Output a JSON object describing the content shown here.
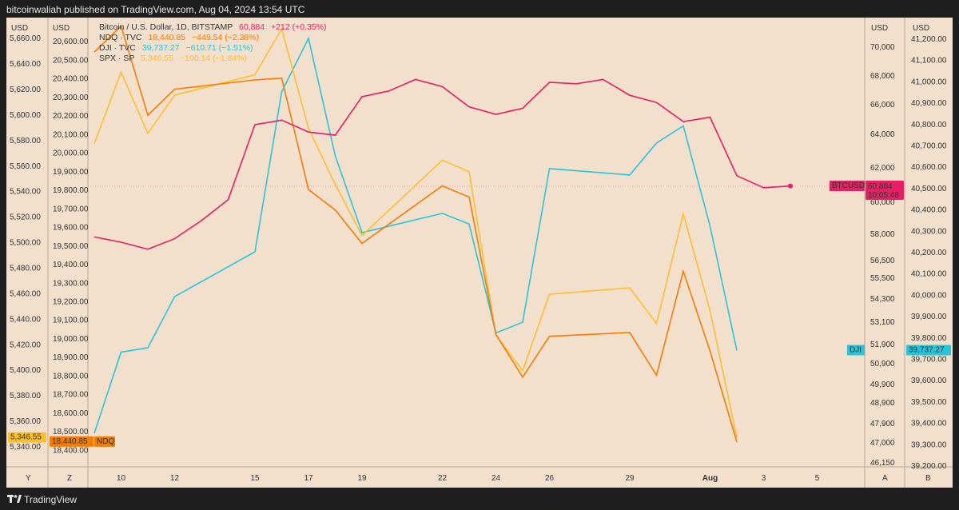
{
  "header": {
    "published": "bitcoinwaliah published on TradingView.com, Aug 04, 2024 13:54 UTC"
  },
  "footer": {
    "brand": "TradingView",
    "logo_icon": "tradingview-logo-icon"
  },
  "colors": {
    "btc": "#e91e63",
    "ndq": "#f57c00",
    "dji": "#26c6da",
    "spx": "#fbc02d",
    "bg": "#f2dfcc"
  },
  "axes": {
    "currency_label": "USD",
    "bottom_labels": {
      "spx": "Y",
      "ndq": "Z",
      "btc": "A",
      "dji": "B"
    },
    "x_ticks": [
      "10",
      "12",
      "15",
      "17",
      "19",
      "22",
      "24",
      "26",
      "29",
      "Aug",
      "3",
      "5"
    ],
    "spx_ticks": [
      "5,660.00",
      "5,640.00",
      "5,620.00",
      "5,600.00",
      "5,580.00",
      "5,560.00",
      "5,540.00",
      "5,520.00",
      "5,500.00",
      "5,480.00",
      "5,460.00",
      "5,440.00",
      "5,420.00",
      "5,400.00",
      "5,380.00",
      "5,360.00",
      "5,340.00"
    ],
    "ndq_ticks": [
      "20,600.00",
      "20,500.00",
      "20,400.00",
      "20,300.00",
      "20,200.00",
      "20,100.00",
      "20,000.00",
      "19,900.00",
      "19,800.00",
      "19,700.00",
      "19,600.00",
      "19,500.00",
      "19,400.00",
      "19,300.00",
      "19,200.00",
      "19,100.00",
      "19,000.00",
      "18,900.00",
      "18,800.00",
      "18,700.00",
      "18,600.00",
      "18,500.00",
      "18,400.00"
    ],
    "btc_ticks": [
      "70,000",
      "68,000",
      "66,000",
      "64,000",
      "62,000",
      "60,000",
      "58,000",
      "56,500",
      "55,500",
      "54,300",
      "53,100",
      "51,900",
      "50,900",
      "49,900",
      "48,900",
      "47,900",
      "47,000",
      "46,150"
    ],
    "dji_ticks": [
      "41,200.00",
      "41,100.00",
      "41,000.00",
      "40,900.00",
      "40,800.00",
      "40,700.00",
      "40,600.00",
      "40,500.00",
      "40,400.00",
      "40,300.00",
      "40,200.00",
      "40,100.00",
      "40,000.00",
      "39,900.00",
      "39,800.00",
      "39,700.00",
      "39,600.00",
      "39,500.00",
      "39,400.00",
      "39,300.00",
      "39,200.00"
    ]
  },
  "legend": {
    "btc": {
      "name": "Bitcoin / U.S. Dollar, 1D, BITSTAMP",
      "price": "60,884",
      "change": "+212 (+0.35%)"
    },
    "ndq": {
      "name": "NDQ · TVC",
      "price": "18,440.85",
      "change": "−449.54 (−2.38%)"
    },
    "dji": {
      "name": "DJI · TVC",
      "price": "39,737.27",
      "change": "−610.71 (−1.51%)"
    },
    "spx": {
      "name": "SPX · SP",
      "price": "5,346.55",
      "change": "−100.14 (−1.84%)"
    }
  },
  "badges": {
    "spx_last": "5,346.55",
    "ndq_last": "18,440.85",
    "ndq_label": "NDQ",
    "btc_label": "BTCUSD",
    "btc_price": "60,884",
    "btc_countdown": "10:05:48",
    "dji_label": "DJI",
    "dji_price": "39,737.27"
  },
  "chart_data": {
    "type": "line",
    "x_axis_note": "daily, July 9 – Aug 4, 2024",
    "series": [
      {
        "name": "BTCUSD",
        "axis": "btc",
        "x": [
          "2024-07-09",
          "2024-07-10",
          "2024-07-11",
          "2024-07-12",
          "2024-07-13",
          "2024-07-14",
          "2024-07-15",
          "2024-07-16",
          "2024-07-17",
          "2024-07-18",
          "2024-07-19",
          "2024-07-20",
          "2024-07-21",
          "2024-07-22",
          "2024-07-23",
          "2024-07-24",
          "2024-07-25",
          "2024-07-26",
          "2024-07-27",
          "2024-07-28",
          "2024-07-29",
          "2024-07-30",
          "2024-07-31",
          "2024-08-01",
          "2024-08-02",
          "2024-08-03",
          "2024-08-04"
        ],
        "values": [
          57800,
          57500,
          57100,
          57700,
          58800,
          60100,
          64600,
          64900,
          64100,
          63900,
          66500,
          66900,
          67700,
          67200,
          65800,
          65300,
          65700,
          67500,
          67400,
          67700,
          66600,
          66100,
          64800,
          65100,
          61500,
          60800,
          60900
        ]
      },
      {
        "name": "NDQ",
        "axis": "ndq",
        "x": [
          "2024-07-09",
          "2024-07-10",
          "2024-07-11",
          "2024-07-12",
          "2024-07-15",
          "2024-07-16",
          "2024-07-17",
          "2024-07-18",
          "2024-07-19",
          "2024-07-22",
          "2024-07-23",
          "2024-07-24",
          "2024-07-25",
          "2024-07-26",
          "2024-07-29",
          "2024-07-30",
          "2024-07-31",
          "2024-08-01",
          "2024-08-02"
        ],
        "values": [
          20540,
          20680,
          20200,
          20340,
          20390,
          20400,
          19800,
          19690,
          19510,
          19820,
          19760,
          19020,
          18790,
          19010,
          19030,
          18800,
          19360,
          18930,
          18440.85
        ]
      },
      {
        "name": "DJI",
        "axis": "dji",
        "x": [
          "2024-07-09",
          "2024-07-10",
          "2024-07-11",
          "2024-07-12",
          "2024-07-15",
          "2024-07-16",
          "2024-07-17",
          "2024-07-18",
          "2024-07-19",
          "2024-07-22",
          "2024-07-23",
          "2024-07-24",
          "2024-07-25",
          "2024-07-26",
          "2024-07-29",
          "2024-07-30",
          "2024-07-31",
          "2024-08-01",
          "2024-08-02"
        ],
        "values": [
          39350,
          39730,
          39750,
          39990,
          40200,
          40950,
          41200,
          40650,
          40290,
          40380,
          40330,
          39820,
          39870,
          40590,
          40560,
          40710,
          40790,
          40320,
          39737.27
        ]
      },
      {
        "name": "SPX",
        "axis": "spx",
        "x": [
          "2024-07-09",
          "2024-07-10",
          "2024-07-11",
          "2024-07-12",
          "2024-07-15",
          "2024-07-16",
          "2024-07-17",
          "2024-07-18",
          "2024-07-19",
          "2024-07-22",
          "2024-07-23",
          "2024-07-24",
          "2024-07-25",
          "2024-07-26",
          "2024-07-29",
          "2024-07-30",
          "2024-07-31",
          "2024-08-01",
          "2024-08-02"
        ],
        "values": [
          5577,
          5633,
          5585,
          5615,
          5631,
          5667,
          5589,
          5545,
          5505,
          5564,
          5555,
          5427,
          5399,
          5459,
          5464,
          5436,
          5522,
          5446,
          5346.55
        ]
      }
    ],
    "ylim": {
      "spx": [
        5330,
        5672
      ],
      "ndq": [
        18350,
        20700
      ],
      "btc_reference_price": 60884,
      "dji_ticks_numeric": [
        41200,
        41100,
        41000,
        40900,
        40800,
        40700,
        40600,
        40500,
        40400,
        40300,
        40200,
        40100,
        40000,
        39900,
        39800,
        39700,
        39600,
        39500,
        39400,
        39300,
        39200
      ]
    },
    "grid": false,
    "legend": "top-left"
  }
}
